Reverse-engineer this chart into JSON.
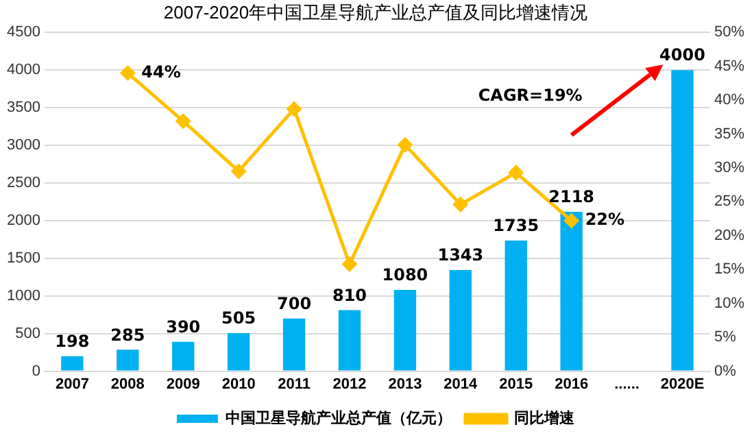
{
  "chart_data": {
    "type": "bar",
    "title": "2007-2020年中国卫星导航产业总产值及同比增速情况",
    "categories": [
      "2007",
      "2008",
      "2009",
      "2010",
      "2011",
      "2012",
      "2013",
      "2014",
      "2015",
      "2016",
      "......",
      "2020E"
    ],
    "series": [
      {
        "name": "中国卫星导航产业总产值（亿元）",
        "color": "#00b0f0",
        "values": [
          198,
          285,
          390,
          505,
          700,
          810,
          1080,
          1343,
          1735,
          2118,
          null,
          4000
        ],
        "value_labels": [
          "198",
          "285",
          "390",
          "505",
          "700",
          "810",
          "1080",
          "1343",
          "1735",
          "2118",
          null,
          "4000"
        ]
      },
      {
        "name": "同比增速",
        "type": "line",
        "axis": "y2",
        "color": "#ffc000",
        "marker": "diamond",
        "values": [
          null,
          44,
          36.9,
          29.5,
          38.7,
          15.8,
          33.4,
          24.6,
          29.3,
          22.2,
          null,
          null
        ],
        "value_labels": [
          null,
          "44%",
          null,
          null,
          null,
          null,
          null,
          null,
          null,
          "22%",
          null,
          null
        ]
      }
    ],
    "ylim": [
      0,
      4500
    ],
    "yticks": [
      0,
      500,
      1000,
      1500,
      2000,
      2500,
      3000,
      3500,
      4000,
      4500
    ],
    "y2lim": [
      0,
      50
    ],
    "y2ticks": [
      {
        "value": 0,
        "label": "0%"
      },
      {
        "value": 5,
        "label": "5%"
      },
      {
        "value": 10,
        "label": "10%"
      },
      {
        "value": 15,
        "label": "15%"
      },
      {
        "value": 20,
        "label": "20%"
      },
      {
        "value": 25,
        "label": "25%"
      },
      {
        "value": 30,
        "label": "30%"
      },
      {
        "value": 35,
        "label": "35%"
      },
      {
        "value": 40,
        "label": "40%"
      },
      {
        "value": 45,
        "label": "45%"
      },
      {
        "value": 50,
        "label": "50%"
      }
    ],
    "grid": "y",
    "legend": "bottom",
    "annotations": [
      "CAGR=19%"
    ]
  }
}
